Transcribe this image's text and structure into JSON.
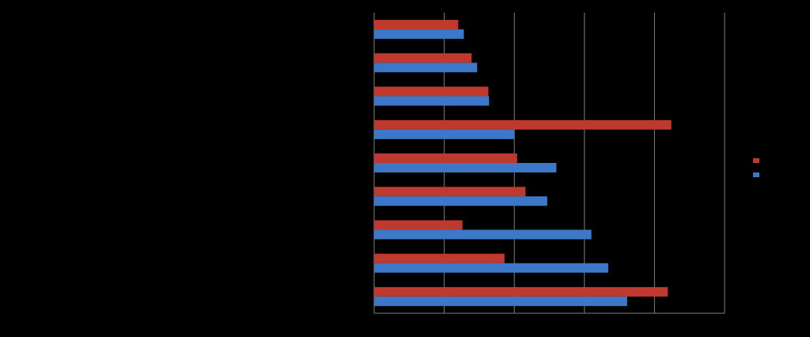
{
  "chart_data": {
    "type": "bar",
    "orientation": "horizontal",
    "categories": [
      null,
      null,
      null,
      null,
      null,
      null,
      null,
      null,
      null
    ],
    "series": [
      {
        "color": "#c0392f",
        "values": [
          1.2,
          1.39,
          1.63,
          4.24,
          2.04,
          2.16,
          1.26,
          1.86,
          4.19
        ]
      },
      {
        "color": "#3d78c8",
        "values": [
          1.28,
          1.47,
          1.64,
          2.0,
          2.6,
          2.47,
          3.1,
          3.34,
          3.61
        ]
      }
    ],
    "xlim": [
      0,
      5
    ],
    "xticks": [
      0,
      1,
      2,
      3,
      4,
      5
    ],
    "grid": true,
    "legend": "right"
  }
}
